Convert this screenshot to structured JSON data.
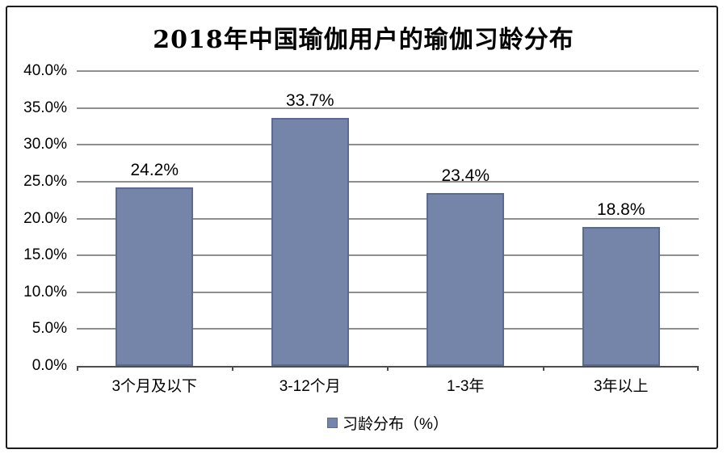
{
  "chart_data": {
    "type": "bar",
    "title": "2018年中国瑜伽用户的瑜伽习龄分布",
    "categories": [
      "3个月及以下",
      "3-12个月",
      "1-3年",
      "3年以上"
    ],
    "values": [
      24.2,
      33.7,
      23.4,
      18.8
    ],
    "value_labels": [
      "24.2%",
      "33.7%",
      "23.4%",
      "18.8%"
    ],
    "ylim": [
      0,
      40
    ],
    "ytick_step": 5,
    "ytick_labels": [
      "0.0%",
      "5.0%",
      "10.0%",
      "15.0%",
      "20.0%",
      "25.0%",
      "30.0%",
      "35.0%",
      "40.0%"
    ],
    "grid": true,
    "legend": {
      "label": "习龄分布（%）",
      "position": "bottom"
    },
    "colors": {
      "bar_fill": "#7585a9",
      "bar_border": "#5a6a95",
      "gridline": "#8f8f8f",
      "axis": "#4d4d4d",
      "text": "#000000",
      "frame_border": "#1c1c1c",
      "background": "#ffffff"
    }
  }
}
